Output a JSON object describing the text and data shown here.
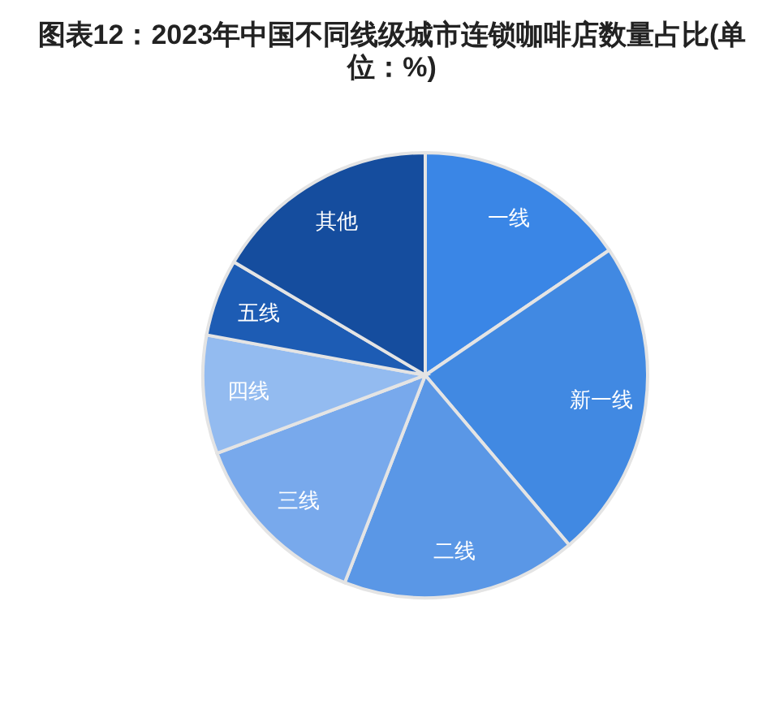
{
  "chart_data": {
    "type": "pie",
    "title": "图表12：2023年中国不同线级城市连锁咖啡店数量占比(单位：%)",
    "categories": [
      "一线",
      "新一线",
      "二线",
      "三线",
      "四线",
      "五线",
      "其他"
    ],
    "values": [
      15.5,
      23.3,
      17.1,
      13.4,
      8.6,
      5.6,
      16.5
    ],
    "colors": [
      "#3a86e6",
      "#4189e2",
      "#5a97e6",
      "#78a9ec",
      "#93bbf0",
      "#1d5cb4",
      "#154d9e"
    ]
  }
}
